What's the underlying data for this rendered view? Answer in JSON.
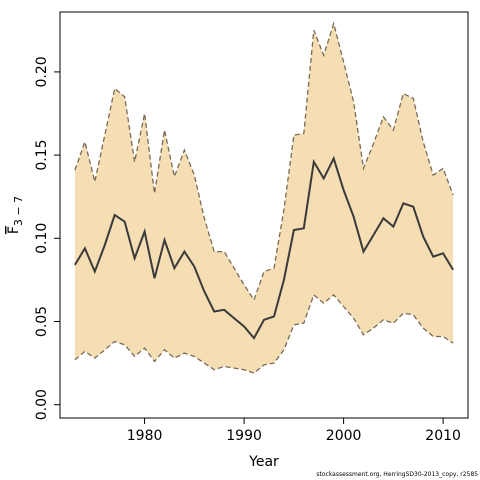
{
  "chart_data": {
    "type": "line",
    "xlabel": "Year",
    "ylabel_main": "F",
    "ylabel_sub": "3 − 7",
    "xlim": [
      1971.5,
      2012.5
    ],
    "ylim": [
      -0.008,
      0.236
    ],
    "x_ticks": [
      1980,
      1990,
      2000,
      2010
    ],
    "x_tick_labels": [
      "1980",
      "1990",
      "2000",
      "2010"
    ],
    "y_ticks": [
      0.0,
      0.05,
      0.1,
      0.15,
      0.2
    ],
    "y_tick_labels": [
      "0.00",
      "0.05",
      "0.10",
      "0.15",
      "0.20"
    ],
    "band_color": "#F5DEB3",
    "estimate_color": "#3a3a3a",
    "bound_color": "#7a6a55",
    "x": [
      1973,
      1974,
      1975,
      1976,
      1977,
      1978,
      1979,
      1980,
      1981,
      1982,
      1983,
      1984,
      1985,
      1986,
      1987,
      1988,
      1989,
      1990,
      1991,
      1992,
      1993,
      1994,
      1995,
      1996,
      1997,
      1998,
      1999,
      2000,
      2001,
      2002,
      2003,
      2004,
      2005,
      2006,
      2007,
      2008,
      2009,
      2010,
      2011
    ],
    "series": [
      {
        "role": "estimate",
        "values": [
          0.084,
          0.094,
          0.08,
          0.096,
          0.114,
          0.11,
          0.088,
          0.104,
          0.076,
          0.099,
          0.082,
          0.092,
          0.083,
          0.068,
          0.056,
          0.057,
          0.052,
          0.047,
          0.04,
          0.051,
          0.053,
          0.075,
          0.105,
          0.106,
          0.146,
          0.136,
          0.148,
          0.129,
          0.113,
          0.092,
          0.102,
          0.112,
          0.107,
          0.121,
          0.119,
          0.101,
          0.089,
          0.091,
          0.081
        ]
      },
      {
        "role": "upper",
        "values": [
          0.141,
          0.158,
          0.134,
          0.162,
          0.19,
          0.185,
          0.146,
          0.175,
          0.127,
          0.165,
          0.137,
          0.153,
          0.138,
          0.112,
          0.092,
          0.092,
          0.082,
          0.072,
          0.063,
          0.08,
          0.082,
          0.117,
          0.162,
          0.163,
          0.225,
          0.21,
          0.229,
          0.206,
          0.182,
          0.142,
          0.157,
          0.173,
          0.165,
          0.187,
          0.184,
          0.158,
          0.138,
          0.142,
          0.126
        ]
      },
      {
        "role": "lower",
        "values": [
          0.027,
          0.032,
          0.028,
          0.033,
          0.038,
          0.036,
          0.029,
          0.034,
          0.026,
          0.033,
          0.028,
          0.031,
          0.029,
          0.025,
          0.021,
          0.023,
          0.022,
          0.021,
          0.019,
          0.024,
          0.025,
          0.033,
          0.048,
          0.049,
          0.066,
          0.061,
          0.066,
          0.059,
          0.052,
          0.042,
          0.046,
          0.051,
          0.049,
          0.055,
          0.054,
          0.046,
          0.041,
          0.041,
          0.037
        ]
      }
    ]
  },
  "credit_text": "stockassessment.org, HerringSD30-2013_copy, r2585"
}
